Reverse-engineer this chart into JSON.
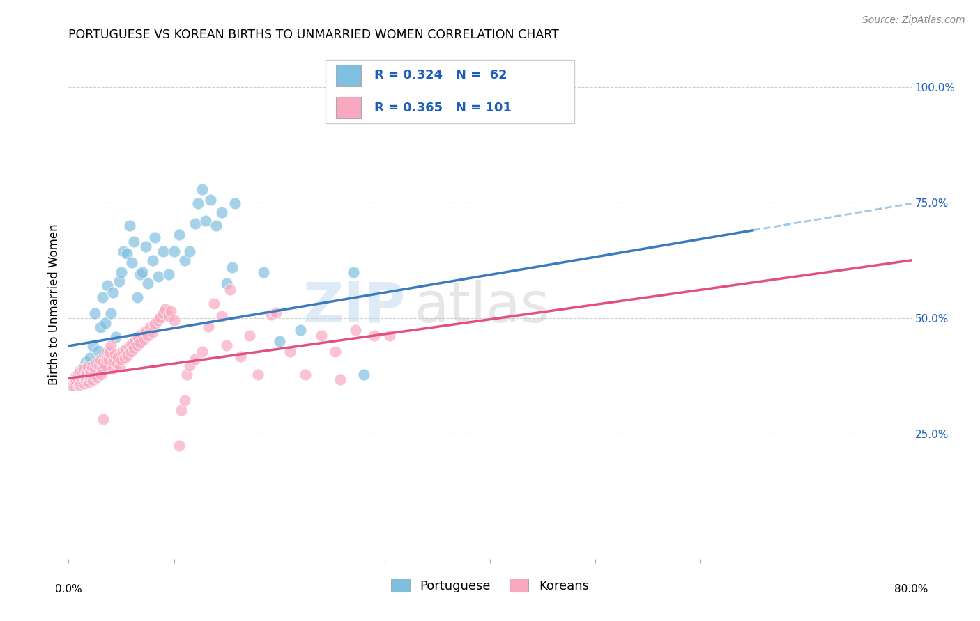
{
  "title": "PORTUGUESE VS KOREAN BIRTHS TO UNMARRIED WOMEN CORRELATION CHART",
  "source": "Source: ZipAtlas.com",
  "ylabel": "Births to Unmarried Women",
  "xlim": [
    0.0,
    0.8
  ],
  "ylim": [
    -0.02,
    1.08
  ],
  "ytick_vals": [
    0.25,
    0.5,
    0.75,
    1.0
  ],
  "ytick_labels": [
    "25.0%",
    "50.0%",
    "75.0%",
    "100.0%"
  ],
  "xticks": [
    0.0,
    0.1,
    0.2,
    0.3,
    0.4,
    0.5,
    0.6,
    0.7,
    0.8
  ],
  "portuguese_R": 0.324,
  "portuguese_N": 62,
  "korean_R": 0.365,
  "korean_N": 101,
  "blue_color": "#7fbfdf",
  "pink_color": "#f8a8c0",
  "blue_line_color": "#3a7abf",
  "pink_line_color": "#e05080",
  "dashed_line_color": "#9fc8e8",
  "legend_R_color": "#1a5fbd",
  "portuguese_scatter": [
    [
      0.005,
      0.355
    ],
    [
      0.007,
      0.375
    ],
    [
      0.009,
      0.365
    ],
    [
      0.01,
      0.37
    ],
    [
      0.01,
      0.385
    ],
    [
      0.012,
      0.36
    ],
    [
      0.013,
      0.375
    ],
    [
      0.013,
      0.39
    ],
    [
      0.015,
      0.38
    ],
    [
      0.015,
      0.395
    ],
    [
      0.016,
      0.405
    ],
    [
      0.017,
      0.37
    ],
    [
      0.018,
      0.385
    ],
    [
      0.018,
      0.4
    ],
    [
      0.02,
      0.415
    ],
    [
      0.022,
      0.395
    ],
    [
      0.023,
      0.44
    ],
    [
      0.025,
      0.51
    ],
    [
      0.028,
      0.43
    ],
    [
      0.03,
      0.48
    ],
    [
      0.032,
      0.545
    ],
    [
      0.035,
      0.49
    ],
    [
      0.037,
      0.57
    ],
    [
      0.04,
      0.51
    ],
    [
      0.042,
      0.555
    ],
    [
      0.045,
      0.46
    ],
    [
      0.048,
      0.58
    ],
    [
      0.05,
      0.6
    ],
    [
      0.052,
      0.645
    ],
    [
      0.055,
      0.64
    ],
    [
      0.058,
      0.7
    ],
    [
      0.06,
      0.62
    ],
    [
      0.062,
      0.665
    ],
    [
      0.065,
      0.545
    ],
    [
      0.068,
      0.595
    ],
    [
      0.07,
      0.6
    ],
    [
      0.073,
      0.655
    ],
    [
      0.075,
      0.575
    ],
    [
      0.08,
      0.625
    ],
    [
      0.082,
      0.675
    ],
    [
      0.085,
      0.59
    ],
    [
      0.09,
      0.645
    ],
    [
      0.095,
      0.595
    ],
    [
      0.1,
      0.645
    ],
    [
      0.105,
      0.68
    ],
    [
      0.11,
      0.625
    ],
    [
      0.115,
      0.645
    ],
    [
      0.12,
      0.705
    ],
    [
      0.123,
      0.748
    ],
    [
      0.127,
      0.778
    ],
    [
      0.13,
      0.71
    ],
    [
      0.135,
      0.755
    ],
    [
      0.14,
      0.7
    ],
    [
      0.145,
      0.728
    ],
    [
      0.15,
      0.575
    ],
    [
      0.155,
      0.61
    ],
    [
      0.158,
      0.748
    ],
    [
      0.185,
      0.6
    ],
    [
      0.2,
      0.45
    ],
    [
      0.22,
      0.475
    ],
    [
      0.27,
      0.6
    ],
    [
      0.28,
      0.378
    ]
  ],
  "korean_scatter": [
    [
      0.003,
      0.355
    ],
    [
      0.005,
      0.36
    ],
    [
      0.006,
      0.365
    ],
    [
      0.007,
      0.368
    ],
    [
      0.008,
      0.372
    ],
    [
      0.009,
      0.378
    ],
    [
      0.01,
      0.382
    ],
    [
      0.01,
      0.355
    ],
    [
      0.011,
      0.362
    ],
    [
      0.012,
      0.368
    ],
    [
      0.012,
      0.374
    ],
    [
      0.013,
      0.38
    ],
    [
      0.013,
      0.386
    ],
    [
      0.014,
      0.39
    ],
    [
      0.015,
      0.358
    ],
    [
      0.016,
      0.365
    ],
    [
      0.016,
      0.372
    ],
    [
      0.017,
      0.378
    ],
    [
      0.017,
      0.384
    ],
    [
      0.018,
      0.395
    ],
    [
      0.019,
      0.362
    ],
    [
      0.02,
      0.37
    ],
    [
      0.02,
      0.378
    ],
    [
      0.021,
      0.386
    ],
    [
      0.022,
      0.395
    ],
    [
      0.023,
      0.366
    ],
    [
      0.024,
      0.378
    ],
    [
      0.025,
      0.39
    ],
    [
      0.026,
      0.402
    ],
    [
      0.027,
      0.372
    ],
    [
      0.028,
      0.385
    ],
    [
      0.029,
      0.398
    ],
    [
      0.03,
      0.41
    ],
    [
      0.031,
      0.378
    ],
    [
      0.032,
      0.392
    ],
    [
      0.033,
      0.405
    ],
    [
      0.033,
      0.282
    ],
    [
      0.035,
      0.398
    ],
    [
      0.036,
      0.412
    ],
    [
      0.037,
      0.428
    ],
    [
      0.038,
      0.412
    ],
    [
      0.039,
      0.426
    ],
    [
      0.04,
      0.442
    ],
    [
      0.042,
      0.392
    ],
    [
      0.043,
      0.408
    ],
    [
      0.044,
      0.422
    ],
    [
      0.046,
      0.402
    ],
    [
      0.047,
      0.416
    ],
    [
      0.049,
      0.395
    ],
    [
      0.05,
      0.41
    ],
    [
      0.051,
      0.428
    ],
    [
      0.053,
      0.415
    ],
    [
      0.054,
      0.432
    ],
    [
      0.056,
      0.42
    ],
    [
      0.057,
      0.438
    ],
    [
      0.059,
      0.428
    ],
    [
      0.06,
      0.445
    ],
    [
      0.062,
      0.435
    ],
    [
      0.063,
      0.452
    ],
    [
      0.065,
      0.442
    ],
    [
      0.066,
      0.46
    ],
    [
      0.068,
      0.448
    ],
    [
      0.07,
      0.465
    ],
    [
      0.072,
      0.455
    ],
    [
      0.073,
      0.472
    ],
    [
      0.075,
      0.462
    ],
    [
      0.077,
      0.48
    ],
    [
      0.08,
      0.47
    ],
    [
      0.082,
      0.488
    ],
    [
      0.085,
      0.495
    ],
    [
      0.087,
      0.502
    ],
    [
      0.09,
      0.51
    ],
    [
      0.092,
      0.52
    ],
    [
      0.095,
      0.505
    ],
    [
      0.097,
      0.515
    ],
    [
      0.1,
      0.495
    ],
    [
      0.105,
      0.225
    ],
    [
      0.107,
      0.302
    ],
    [
      0.11,
      0.322
    ],
    [
      0.112,
      0.378
    ],
    [
      0.115,
      0.398
    ],
    [
      0.12,
      0.412
    ],
    [
      0.127,
      0.428
    ],
    [
      0.133,
      0.482
    ],
    [
      0.138,
      0.532
    ],
    [
      0.145,
      0.505
    ],
    [
      0.15,
      0.442
    ],
    [
      0.153,
      0.562
    ],
    [
      0.163,
      0.418
    ],
    [
      0.172,
      0.462
    ],
    [
      0.18,
      0.378
    ],
    [
      0.192,
      0.508
    ],
    [
      0.197,
      0.512
    ],
    [
      0.21,
      0.428
    ],
    [
      0.225,
      0.378
    ],
    [
      0.24,
      0.462
    ],
    [
      0.253,
      0.428
    ],
    [
      0.258,
      0.368
    ],
    [
      0.272,
      0.475
    ],
    [
      0.29,
      0.462
    ],
    [
      0.305,
      0.462
    ]
  ]
}
